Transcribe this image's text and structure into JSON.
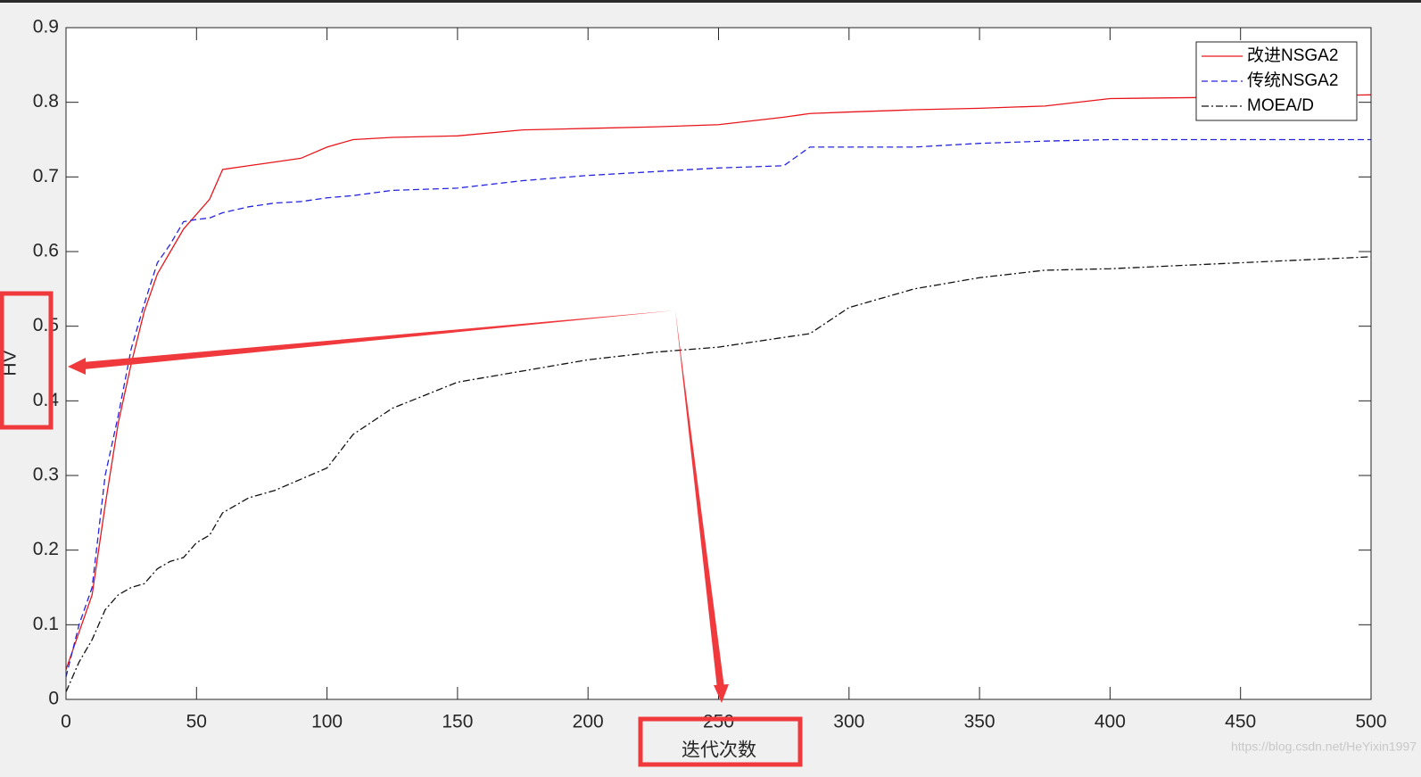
{
  "chart_data": {
    "type": "line",
    "x": [
      0,
      5,
      10,
      15,
      20,
      25,
      30,
      35,
      40,
      45,
      50,
      55,
      60,
      70,
      80,
      90,
      100,
      110,
      125,
      150,
      175,
      200,
      225,
      250,
      275,
      285,
      300,
      325,
      350,
      375,
      400,
      450,
      500
    ],
    "series": [
      {
        "name": "改进NSGA2",
        "color": "#e8161b",
        "dash": "none",
        "values": [
          0.04,
          0.09,
          0.14,
          0.26,
          0.37,
          0.45,
          0.52,
          0.57,
          0.6,
          0.63,
          0.65,
          0.67,
          0.71,
          0.715,
          0.72,
          0.725,
          0.74,
          0.75,
          0.753,
          0.755,
          0.763,
          0.765,
          0.767,
          0.77,
          0.78,
          0.785,
          0.787,
          0.79,
          0.792,
          0.795,
          0.805,
          0.807,
          0.81
        ]
      },
      {
        "name": "传统NSGA2",
        "color": "#2424e0",
        "dash": "7,4",
        "values": [
          0.03,
          0.1,
          0.15,
          0.3,
          0.38,
          0.47,
          0.53,
          0.585,
          0.61,
          0.64,
          0.643,
          0.645,
          0.652,
          0.66,
          0.665,
          0.667,
          0.672,
          0.675,
          0.682,
          0.685,
          0.695,
          0.702,
          0.707,
          0.712,
          0.715,
          0.74,
          0.74,
          0.74,
          0.745,
          0.748,
          0.75,
          0.75,
          0.75
        ]
      },
      {
        "name": "MOEA/D",
        "color": "#111111",
        "dash": "8,3,2,3",
        "values": [
          0.01,
          0.05,
          0.08,
          0.12,
          0.14,
          0.15,
          0.155,
          0.175,
          0.185,
          0.19,
          0.21,
          0.22,
          0.25,
          0.27,
          0.28,
          0.295,
          0.31,
          0.355,
          0.39,
          0.425,
          0.44,
          0.455,
          0.465,
          0.472,
          0.485,
          0.49,
          0.525,
          0.55,
          0.565,
          0.575,
          0.577,
          0.585,
          0.593
        ]
      }
    ],
    "xlim": [
      0,
      500
    ],
    "ylim": [
      0,
      0.9
    ],
    "xticks": [
      0,
      50,
      100,
      150,
      200,
      250,
      300,
      350,
      400,
      450,
      500
    ],
    "yticks": [
      0,
      0.1,
      0.2,
      0.3,
      0.4,
      0.5,
      0.6,
      0.7,
      0.8,
      0.9
    ],
    "xlabel": "迭代次数",
    "ylabel": "HV",
    "legend": "upper right",
    "watermark": "https://blog.csdn.net/HeYixin1997"
  }
}
